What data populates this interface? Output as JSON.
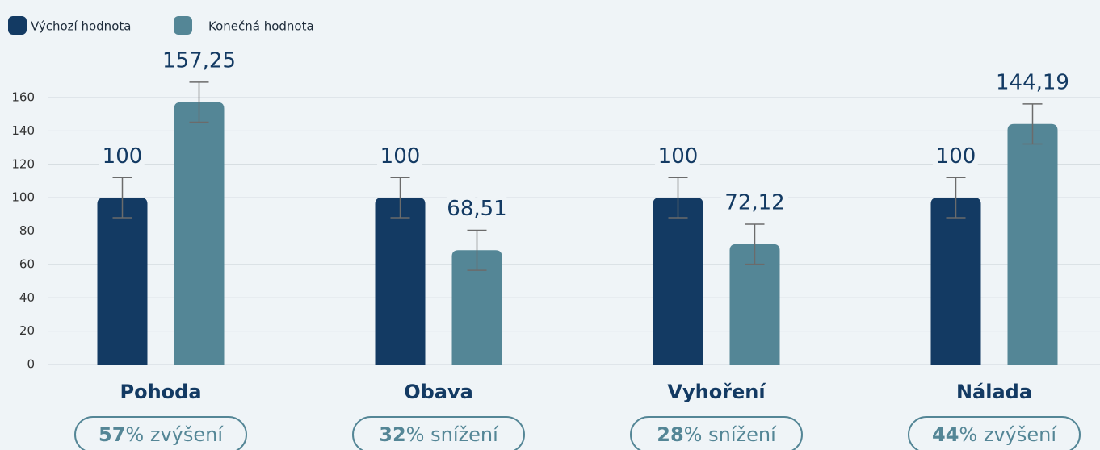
{
  "chart_data": {
    "type": "bar",
    "categories": [
      "Pohoda",
      "Obava",
      "Vyhoření",
      "Nálada"
    ],
    "series": [
      {
        "name": "Výchozí hodnota",
        "color": "#133a63",
        "values": [
          100,
          100,
          100,
          100
        ],
        "errors": [
          12,
          12,
          12,
          12
        ]
      },
      {
        "name": "Konečná hodnota",
        "color": "#548696",
        "values": [
          157.25,
          68.51,
          72.12,
          144.19
        ],
        "value_labels": [
          "157,25",
          "68,51",
          "72,12",
          "144,19"
        ],
        "errors": [
          12,
          12,
          12,
          12
        ]
      }
    ],
    "change_labels": [
      {
        "value": 57,
        "text": "% zvýšení"
      },
      {
        "value": 32,
        "text": "% snížení"
      },
      {
        "value": 28,
        "text": "% snížení"
      },
      {
        "value": 44,
        "text": "% zvýšení"
      }
    ],
    "ylim": [
      0,
      160
    ],
    "yticks": [
      0,
      20,
      40,
      60,
      80,
      100,
      120,
      140,
      160
    ],
    "grid": true,
    "legend": "top-left"
  }
}
